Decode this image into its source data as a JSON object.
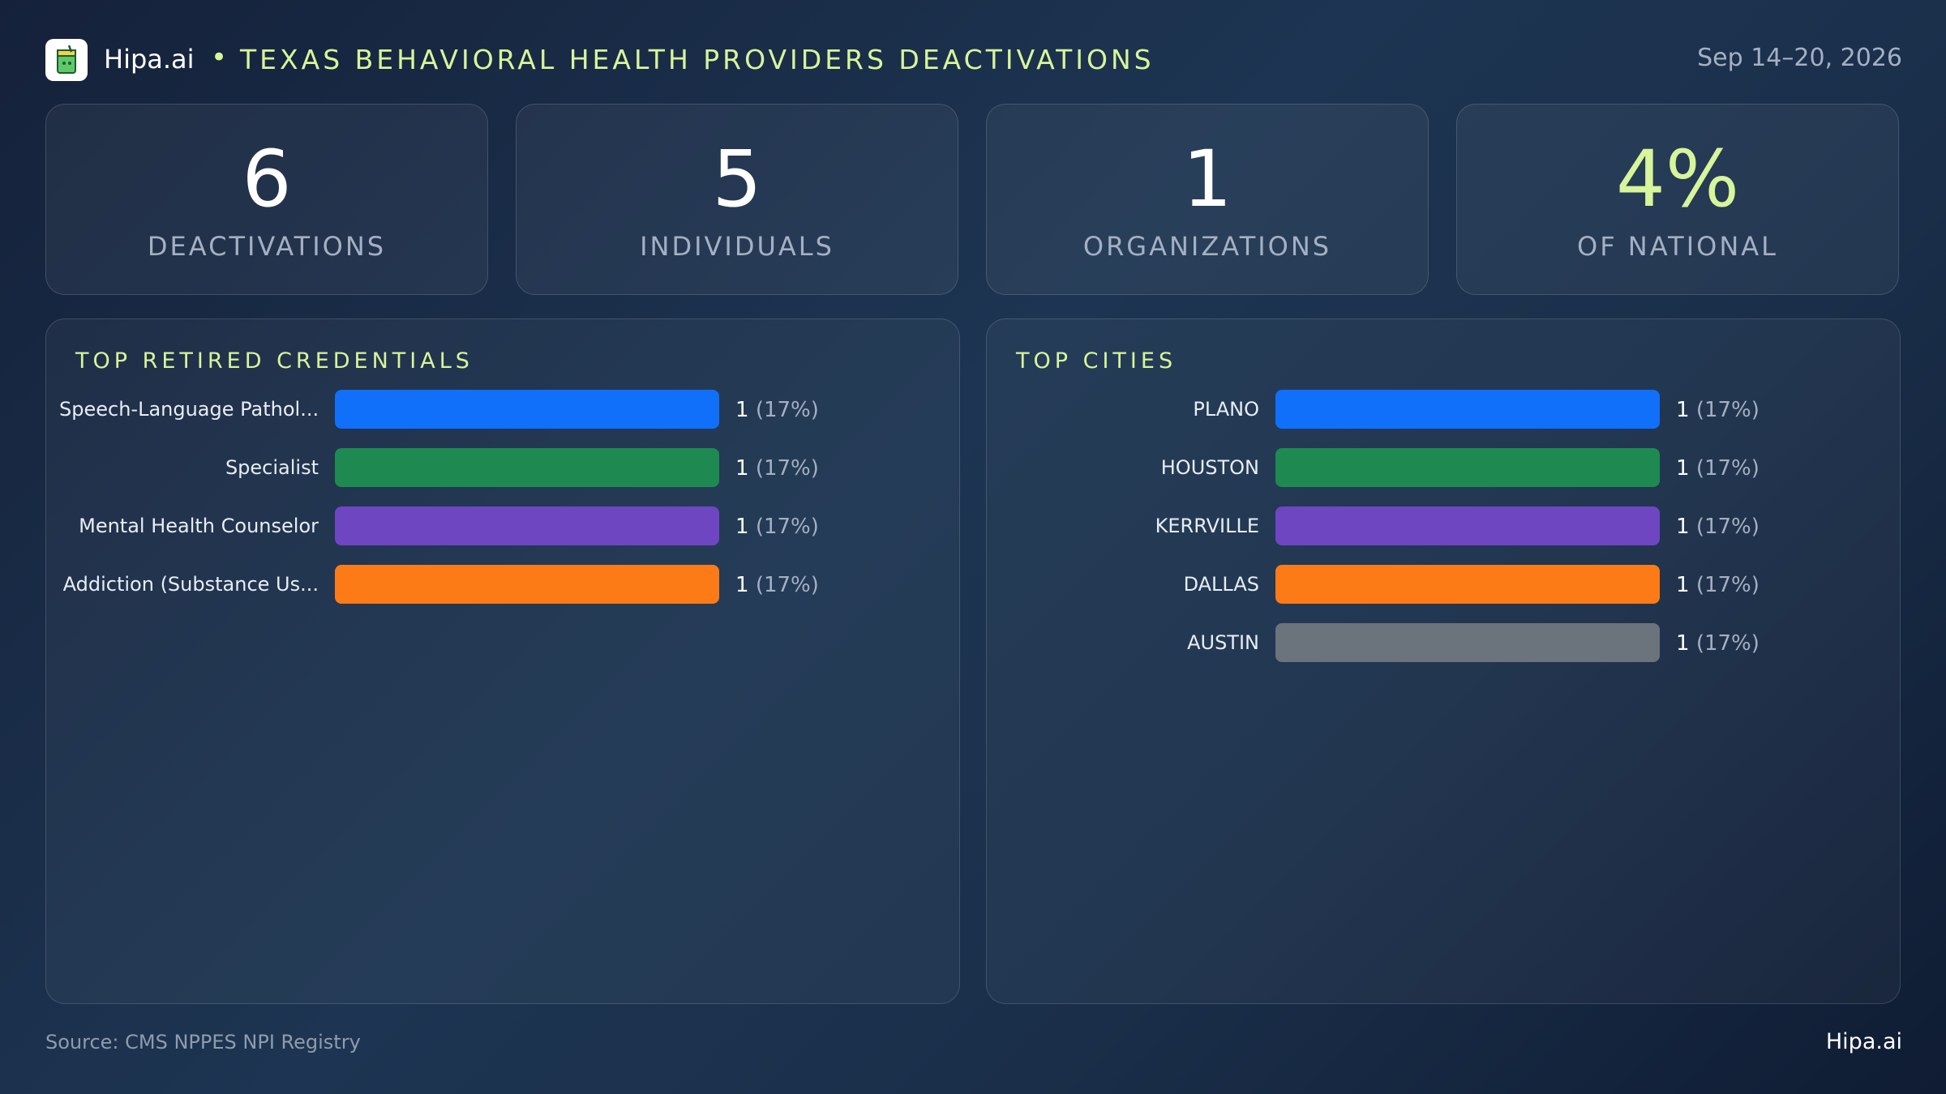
{
  "header": {
    "brand": "Hipa.ai",
    "separator": "•",
    "title": "TEXAS BEHAVIORAL HEALTH PROVIDERS DEACTIVATIONS",
    "date_range": "Sep 14–20, 2026",
    "logo_icon": "cup-icon"
  },
  "kpis": [
    {
      "value": "6",
      "label": "DEACTIVATIONS"
    },
    {
      "value": "5",
      "label": "INDIVIDUALS"
    },
    {
      "value": "1",
      "label": "ORGANIZATIONS"
    },
    {
      "value": "4%",
      "label": "OF NATIONAL"
    }
  ],
  "colors": {
    "accent": "#d7f59a",
    "blue": "#1170fa",
    "green": "#1e8a52",
    "purple": "#6e46c2",
    "orange": "#fc7b17",
    "gray": "#6b737c"
  },
  "chart_data": [
    {
      "type": "bar",
      "orientation": "horizontal",
      "title": "TOP RETIRED CREDENTIALS",
      "categories": [
        "Speech-Language Pathol...",
        "Specialist",
        "Mental Health Counselor",
        "Addiction (Substance Us..."
      ],
      "values": [
        1,
        1,
        1,
        1
      ],
      "labels": [
        "(17%)",
        "(17%)",
        "(17%)",
        "(17%)"
      ],
      "colors": [
        "#1170fa",
        "#1e8a52",
        "#6e46c2",
        "#fc7b17"
      ],
      "xlim": [
        0,
        1
      ]
    },
    {
      "type": "bar",
      "orientation": "horizontal",
      "title": "TOP CITIES",
      "categories": [
        "PLANO",
        "HOUSTON",
        "KERRVILLE",
        "DALLAS",
        "AUSTIN"
      ],
      "values": [
        1,
        1,
        1,
        1,
        1
      ],
      "labels": [
        "(17%)",
        "(17%)",
        "(17%)",
        "(17%)",
        "(17%)"
      ],
      "colors": [
        "#1170fa",
        "#1e8a52",
        "#6e46c2",
        "#fc7b17",
        "#6b737c"
      ],
      "xlim": [
        0,
        1
      ]
    }
  ],
  "footer": {
    "source": "Source: CMS NPPES NPI Registry",
    "brand": "Hipa.ai"
  }
}
